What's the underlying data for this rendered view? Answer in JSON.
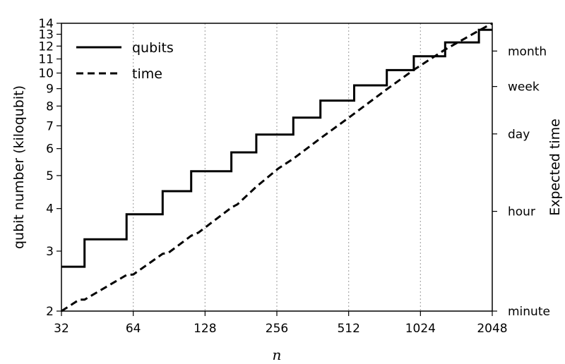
{
  "chart_data": {
    "type": "line",
    "xlabel": "n",
    "ylabel": "qubit number (kiloqubit)",
    "y2label": "Expected time",
    "xscale": "log2",
    "yscale": "log",
    "x_ticks": [
      32,
      64,
      128,
      256,
      512,
      1024,
      2048
    ],
    "x_tick_labels": [
      "32",
      "64",
      "128",
      "256",
      "512",
      "1024",
      "2048"
    ],
    "xlim": [
      32,
      2048
    ],
    "y_ticks": [
      2,
      3,
      4,
      5,
      6,
      7,
      8,
      9,
      10,
      11,
      12,
      13,
      14
    ],
    "y_tick_labels": [
      "2",
      "3",
      "4",
      "5",
      "6",
      "7",
      "8",
      "9",
      "10",
      "11",
      "12",
      "13",
      "14"
    ],
    "ylim": [
      2,
      14
    ],
    "y2_ticks": [
      "minute",
      "hour",
      "day",
      "week",
      "month"
    ],
    "y2_tick_values_minutes": [
      1,
      60,
      1440,
      10080,
      43200
    ],
    "y2lim_minutes": [
      1,
      135000
    ],
    "grid": "vertical dotted at x ticks",
    "legend_position": "top-left",
    "series": [
      {
        "name": "qubits",
        "style": "solid",
        "axis": "left",
        "step_x": [
          32,
          40,
          40,
          60,
          60,
          85,
          85,
          112,
          112,
          165,
          165,
          210,
          210,
          300,
          300,
          390,
          390,
          540,
          540,
          740,
          740,
          960,
          960,
          1300,
          1300,
          1800,
          1800,
          2048
        ],
        "step_y": [
          2.7,
          2.7,
          3.25,
          3.25,
          3.85,
          3.85,
          4.5,
          4.5,
          5.15,
          5.15,
          5.85,
          5.85,
          6.6,
          6.6,
          7.4,
          7.4,
          8.3,
          8.3,
          9.2,
          9.2,
          10.2,
          10.2,
          11.2,
          11.2,
          12.3,
          12.3,
          13.4,
          13.4
        ]
      },
      {
        "name": "time",
        "style": "dashed",
        "axis": "right",
        "x": [
          32,
          38,
          40,
          60,
          64,
          85,
          90,
          112,
          120,
          165,
          175,
          210,
          260,
          300,
          390,
          512,
          740,
          960,
          1300,
          1800,
          2048
        ],
        "y_minutes": [
          1,
          1.6,
          1.6,
          4.4,
          4.5,
          10.5,
          11,
          22,
          25,
          70,
          80,
          165,
          350,
          520,
          1200,
          2800,
          9000,
          20000,
          46000,
          100000,
          135000
        ]
      }
    ]
  }
}
